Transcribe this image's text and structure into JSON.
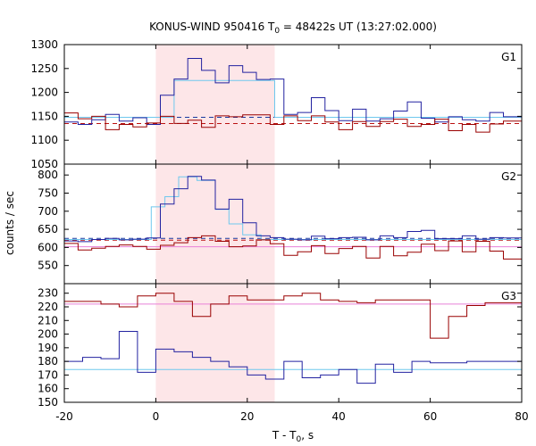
{
  "chart_data": {
    "type": "line",
    "title_parts": {
      "prefix": "KONUS-WIND 950416 T",
      "sub": "0",
      "suffix": " = 48422s UT (13:27:02.000)"
    },
    "xlabel_parts": {
      "prefix": "T - T",
      "sub": "0",
      "suffix": ", s"
    },
    "ylabel": "counts / sec",
    "xlim": [
      -20,
      80
    ],
    "xticks": [
      "-20",
      "0",
      "20",
      "40",
      "60",
      "80"
    ],
    "xtick_values": [
      -20,
      0,
      20,
      40,
      60,
      80
    ],
    "highlight_interval": [
      0,
      26
    ],
    "colors": {
      "blue": "#2222a0",
      "red": "#990000",
      "light_blue": "#6fc8ee",
      "pink": "#e880d8",
      "highlight": "#fde6e8",
      "blue_dashed": "#1a3aa0",
      "red_dashed": "#bb1111"
    },
    "panels": [
      {
        "label": "G1",
        "ylim": [
          1050,
          1300
        ],
        "yticks": [
          1050,
          1100,
          1150,
          1200,
          1250,
          1300
        ],
        "ytick_labels": [
          "1050",
          "1100",
          "1150",
          "1200",
          "1250",
          "1300"
        ],
        "bin_edges": [
          -20,
          -17,
          -14,
          -11,
          -8,
          -5,
          -2,
          1,
          4,
          7,
          10,
          13,
          16,
          19,
          22,
          25,
          28,
          31,
          34,
          37,
          40,
          43,
          46,
          49,
          52,
          55,
          58,
          61,
          64,
          67,
          70,
          73,
          76,
          79,
          80
        ],
        "series": [
          {
            "color": "blue",
            "values": [
              1138,
              1133,
              1143,
              1154,
              1140,
              1147,
              1133,
              1194,
              1228,
              1271,
              1246,
              1220,
              1256,
              1242,
              1227,
              1228,
              1154,
              1158,
              1189,
              1162,
              1141,
              1165,
              1140,
              1145,
              1161,
              1180,
              1146,
              1138,
              1149,
              1143,
              1140,
              1158,
              1149,
              1149
            ]
          },
          {
            "color": "red",
            "values": [
              1157,
              1145,
              1150,
              1122,
              1133,
              1128,
              1136,
              1150,
              1135,
              1142,
              1127,
              1151,
              1149,
              1153,
              1153,
              1133,
              1151,
              1141,
              1151,
              1138,
              1122,
              1139,
              1129,
              1139,
              1144,
              1129,
              1133,
              1144,
              1120,
              1133,
              1117,
              1134,
              1140,
              1140
            ]
          }
        ],
        "model_steps": [
          {
            "color": "light_blue",
            "x": [
              -20,
              4,
              4,
              26,
              26,
              80
            ],
            "y": [
              1148,
              1148,
              1225,
              1225,
              1148,
              1148
            ]
          }
        ],
        "flat_lines": [
          {
            "color": "blue_dashed",
            "y": 1148,
            "dashed": true
          },
          {
            "color": "red_dashed",
            "y": 1135,
            "dashed": true
          }
        ]
      },
      {
        "label": "G2",
        "ylim": [
          500,
          830
        ],
        "yticks": [
          550,
          600,
          650,
          700,
          750,
          800
        ],
        "ytick_labels": [
          "550",
          "600",
          "650",
          "700",
          "750",
          "800"
        ],
        "bin_edges": [
          -20,
          -17,
          -14,
          -11,
          -8,
          -5,
          -2,
          1,
          4,
          7,
          10,
          13,
          16,
          19,
          22,
          25,
          28,
          31,
          34,
          37,
          40,
          43,
          46,
          49,
          52,
          55,
          58,
          61,
          64,
          67,
          70,
          73,
          76,
          79,
          80
        ],
        "series": [
          {
            "color": "blue",
            "values": [
              618,
              616,
              622,
              625,
              621,
              623,
              626,
              720,
              762,
              796,
              786,
              706,
              733,
              668,
              632,
              627,
              623,
              621,
              631,
              624,
              627,
              628,
              621,
              632,
              627,
              644,
              647,
              624,
              624,
              632,
              623,
              627,
              626,
              626
            ]
          },
          {
            "color": "red",
            "values": [
              611,
              593,
              598,
              603,
              607,
              603,
              595,
              606,
              613,
              627,
              632,
              617,
              602,
              604,
              621,
              610,
              578,
              588,
              605,
              583,
              597,
              603,
              571,
              603,
              577,
              587,
              609,
              591,
              618,
              588,
              617,
              590,
              568,
              568
            ]
          }
        ],
        "model_steps": [
          {
            "color": "light_blue",
            "x": [
              -20,
              -1,
              -1,
              2,
              2,
              5,
              5,
              9,
              9,
              13,
              13,
              16,
              16,
              19,
              19,
              23,
              23,
              80
            ],
            "y": [
              622,
              622,
              712,
              712,
              740,
              740,
              795,
              795,
              785,
              785,
              705,
              705,
              665,
              665,
              635,
              635,
              622,
              622
            ]
          }
        ],
        "flat_lines": [
          {
            "color": "blue_dashed",
            "y": 625,
            "dashed": true
          },
          {
            "color": "red_dashed",
            "y": 620,
            "dashed": true
          },
          {
            "color": "pink",
            "y": 602,
            "dashed": false
          }
        ]
      },
      {
        "label": "G3",
        "ylim": [
          150,
          237
        ],
        "yticks": [
          150,
          160,
          170,
          180,
          190,
          200,
          210,
          220,
          230
        ],
        "ytick_labels": [
          "150",
          "160",
          "170",
          "180",
          "190",
          "200",
          "210",
          "220",
          "230"
        ],
        "bin_edges": [
          -20,
          -16,
          -12,
          -8,
          -4,
          0,
          4,
          8,
          12,
          16,
          20,
          24,
          28,
          32,
          36,
          40,
          44,
          48,
          52,
          56,
          60,
          64,
          68,
          72,
          76,
          80
        ],
        "series": [
          {
            "color": "blue",
            "values": [
              180,
              183,
              182,
              202,
              172,
              189,
              187,
              183,
              180,
              176,
              170,
              167,
              180,
              168,
              170,
              174,
              164,
              178,
              172,
              180,
              179,
              179,
              180,
              180,
              180
            ]
          },
          {
            "color": "red",
            "values": [
              224,
              224,
              222,
              220,
              228,
              230,
              224,
              213,
              222,
              228,
              225,
              225,
              228,
              230,
              225,
              224,
              223,
              225,
              225,
              225,
              197,
              213,
              221,
              223,
              223
            ]
          }
        ],
        "model_steps": [],
        "flat_lines": [
          {
            "color": "light_blue",
            "y": 174,
            "dashed": false
          },
          {
            "color": "pink",
            "y": 222,
            "dashed": false
          }
        ]
      }
    ],
    "legend": "none",
    "grid": false
  }
}
